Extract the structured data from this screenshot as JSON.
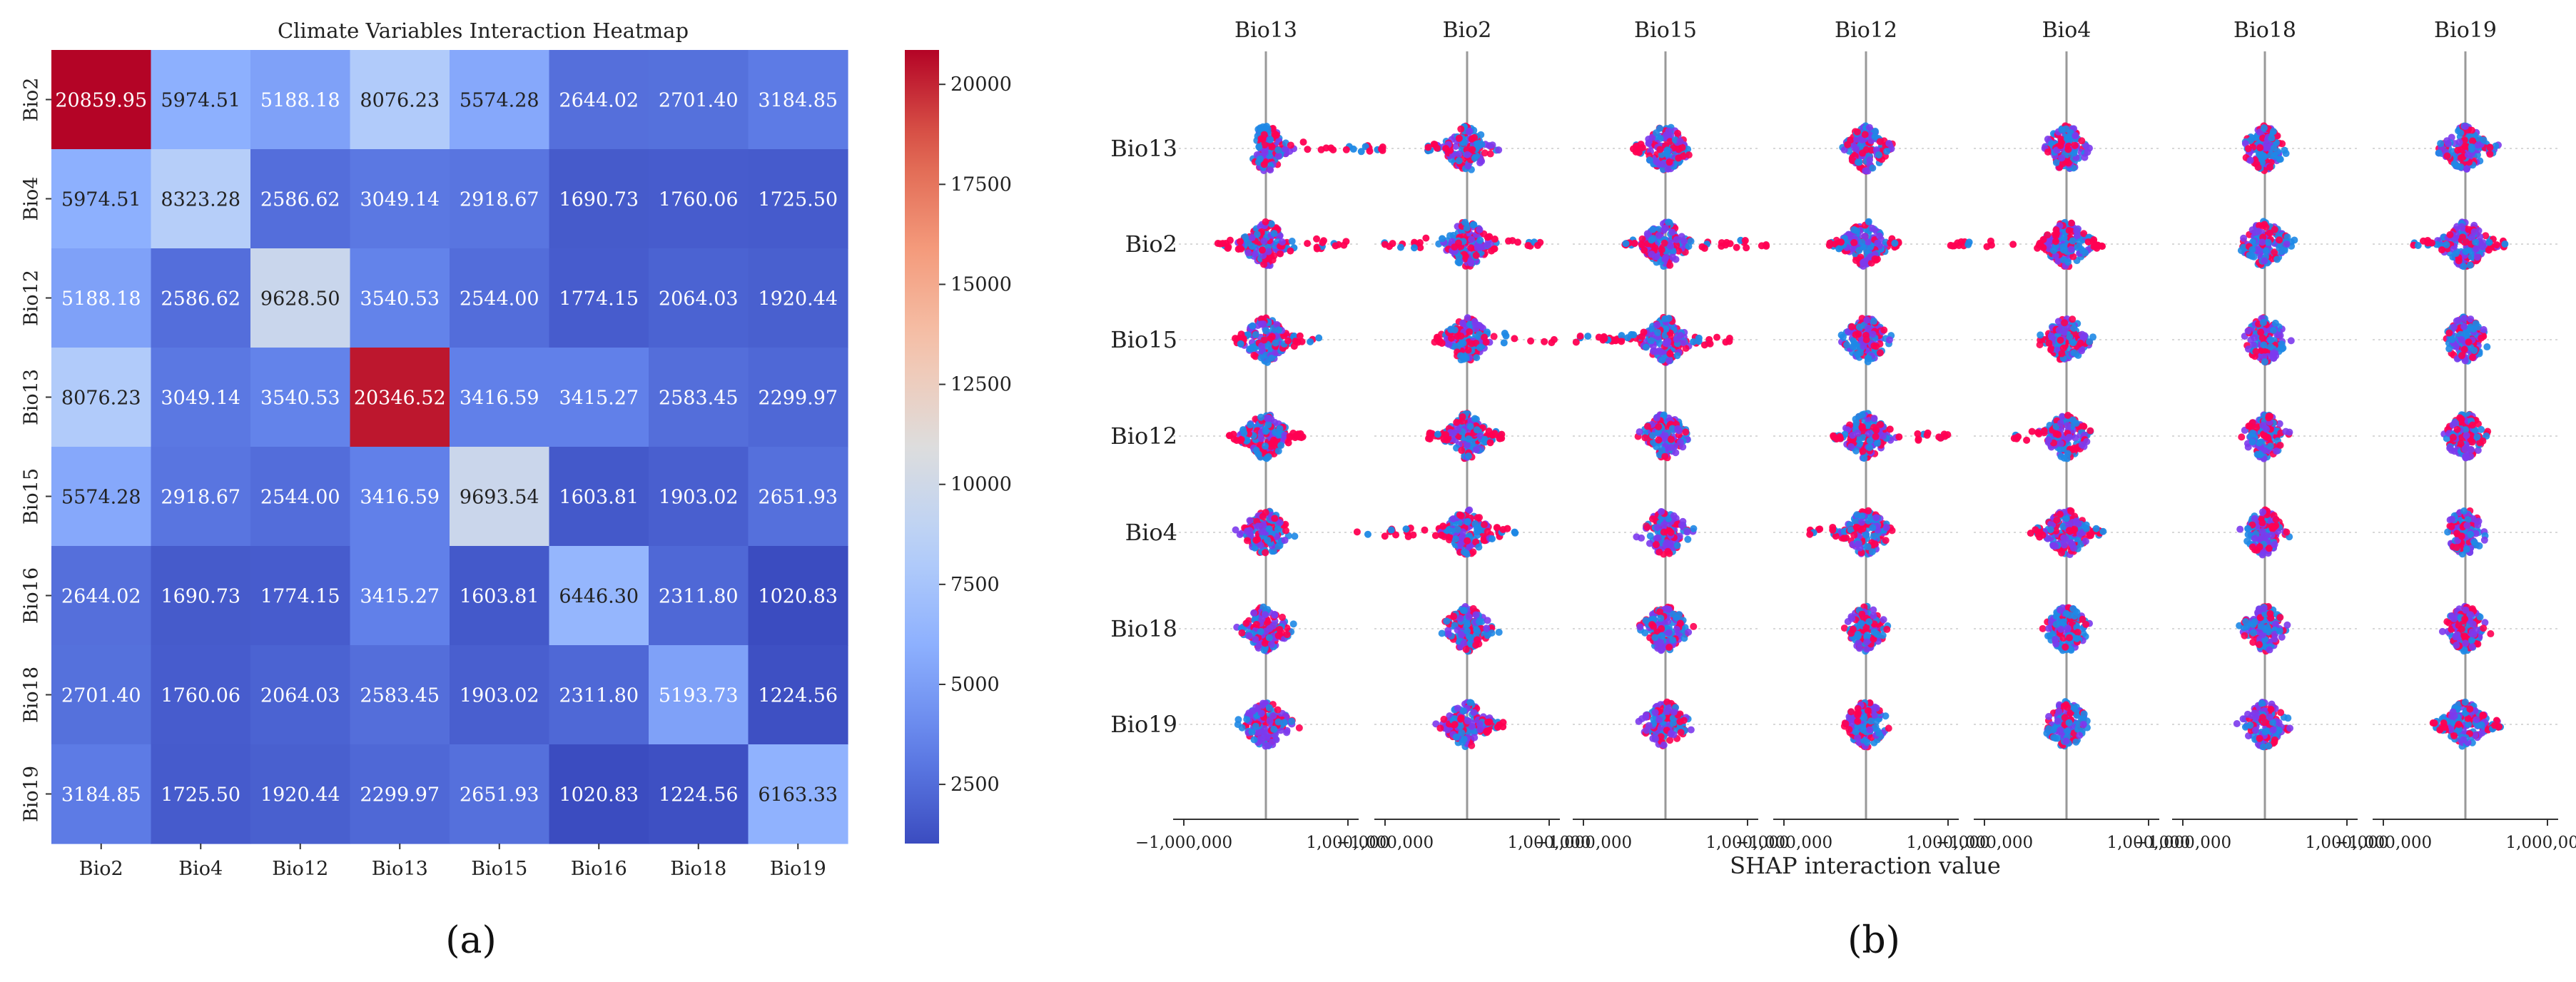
{
  "panel_a": {
    "caption": "(a)",
    "chart_data": {
      "type": "heatmap",
      "title": "Climate Variables Interaction Heatmap",
      "row_labels": [
        "Bio2",
        "Bio4",
        "Bio12",
        "Bio13",
        "Bio15",
        "Bio16",
        "Bio18",
        "Bio19"
      ],
      "col_labels": [
        "Bio2",
        "Bio4",
        "Bio12",
        "Bio13",
        "Bio15",
        "Bio16",
        "Bio18",
        "Bio19"
      ],
      "values": [
        [
          "20859.95",
          "5974.51",
          "5188.18",
          "8076.23",
          "5574.28",
          "2644.02",
          "2701.40",
          "3184.85"
        ],
        [
          "5974.51",
          "8323.28",
          "2586.62",
          "3049.14",
          "2918.67",
          "1690.73",
          "1760.06",
          "1725.50"
        ],
        [
          "5188.18",
          "2586.62",
          "9628.50",
          "3540.53",
          "2544.00",
          "1774.15",
          "2064.03",
          "1920.44"
        ],
        [
          "8076.23",
          "3049.14",
          "3540.53",
          "20346.52",
          "3416.59",
          "3415.27",
          "2583.45",
          "2299.97"
        ],
        [
          "5574.28",
          "2918.67",
          "2544.00",
          "3416.59",
          "9693.54",
          "1603.81",
          "1903.02",
          "2651.93"
        ],
        [
          "2644.02",
          "1690.73",
          "1774.15",
          "3415.27",
          "1603.81",
          "6446.30",
          "2311.80",
          "1020.83"
        ],
        [
          "2701.40",
          "1760.06",
          "2064.03",
          "2583.45",
          "1903.02",
          "2311.80",
          "5193.73",
          "1224.56"
        ],
        [
          "3184.85",
          "1725.50",
          "1920.44",
          "2299.97",
          "2651.93",
          "1020.83",
          "1224.56",
          "6163.33"
        ]
      ],
      "colormap": "coolwarm",
      "colorbar": {
        "range": [
          1020.83,
          20859.95
        ],
        "ticks": [
          "2500",
          "5000",
          "7500",
          "10000",
          "12500",
          "15000",
          "17500",
          "20000"
        ]
      }
    }
  },
  "panel_b": {
    "caption": "(b)",
    "chart_data": {
      "type": "scatter",
      "subtype": "beeswarm-grid",
      "columns": [
        "Bio13",
        "Bio2",
        "Bio15",
        "Bio12",
        "Bio4",
        "Bio18",
        "Bio19"
      ],
      "rows": [
        "Bio13",
        "Bio2",
        "Bio15",
        "Bio12",
        "Bio4",
        "Bio18",
        "Bio19"
      ],
      "xlabel": "SHAP interaction value",
      "xticks": [
        "−1,000,000",
        "1,000,000"
      ],
      "xlim": [
        -1500000,
        1500000
      ],
      "feature_value_colors": {
        "low": "#1e88e5",
        "high": "#ff0052",
        "mid": "#7c3aed"
      },
      "row_spread": [
        [
          {
            "l": -150000,
            "r": 1450000
          },
          {
            "l": -500000,
            "r": 350000
          },
          {
            "l": -400000,
            "r": 300000
          },
          {
            "l": -350000,
            "r": 350000
          },
          {
            "l": -250000,
            "r": 250000
          },
          {
            "l": -250000,
            "r": 250000
          },
          {
            "l": -300000,
            "r": 350000
          }
        ],
        [
          {
            "l": -650000,
            "r": 1100000
          },
          {
            "l": -1050000,
            "r": 900000
          },
          {
            "l": -500000,
            "r": 1300000
          },
          {
            "l": -450000,
            "r": 400000
          },
          {
            "l": -1450000,
            "r": 450000
          },
          {
            "l": -300000,
            "r": 350000
          },
          {
            "l": -650000,
            "r": 500000
          }
        ],
        [
          {
            "l": -400000,
            "r": 650000
          },
          {
            "l": -400000,
            "r": 1900000
          },
          {
            "l": -850000,
            "r": 800000
          },
          {
            "l": -300000,
            "r": 300000
          },
          {
            "l": -300000,
            "r": 300000
          },
          {
            "l": -250000,
            "r": 250000
          },
          {
            "l": -250000,
            "r": 250000
          }
        ],
        [
          {
            "l": -450000,
            "r": 450000
          },
          {
            "l": -500000,
            "r": 450000
          },
          {
            "l": -300000,
            "r": 300000
          },
          {
            "l": -400000,
            "r": 1000000
          },
          {
            "l": -650000,
            "r": 300000
          },
          {
            "l": -250000,
            "r": 250000
          },
          {
            "l": -250000,
            "r": 250000
          }
        ],
        [
          {
            "l": -350000,
            "r": 350000
          },
          {
            "l": -1350000,
            "r": 650000
          },
          {
            "l": -300000,
            "r": 300000
          },
          {
            "l": -700000,
            "r": 300000
          },
          {
            "l": -450000,
            "r": 450000
          },
          {
            "l": -250000,
            "r": 250000
          },
          {
            "l": -250000,
            "r": 250000
          }
        ],
        [
          {
            "l": -300000,
            "r": 350000
          },
          {
            "l": -300000,
            "r": 300000
          },
          {
            "l": -300000,
            "r": 300000
          },
          {
            "l": -250000,
            "r": 250000
          },
          {
            "l": -250000,
            "r": 250000
          },
          {
            "l": -250000,
            "r": 250000
          },
          {
            "l": -250000,
            "r": 250000
          }
        ],
        [
          {
            "l": -300000,
            "r": 350000
          },
          {
            "l": -350000,
            "r": 450000
          },
          {
            "l": -300000,
            "r": 300000
          },
          {
            "l": -250000,
            "r": 250000
          },
          {
            "l": -250000,
            "r": 250000
          },
          {
            "l": -250000,
            "r": 250000
          },
          {
            "l": -400000,
            "r": 450000
          }
        ]
      ]
    }
  }
}
